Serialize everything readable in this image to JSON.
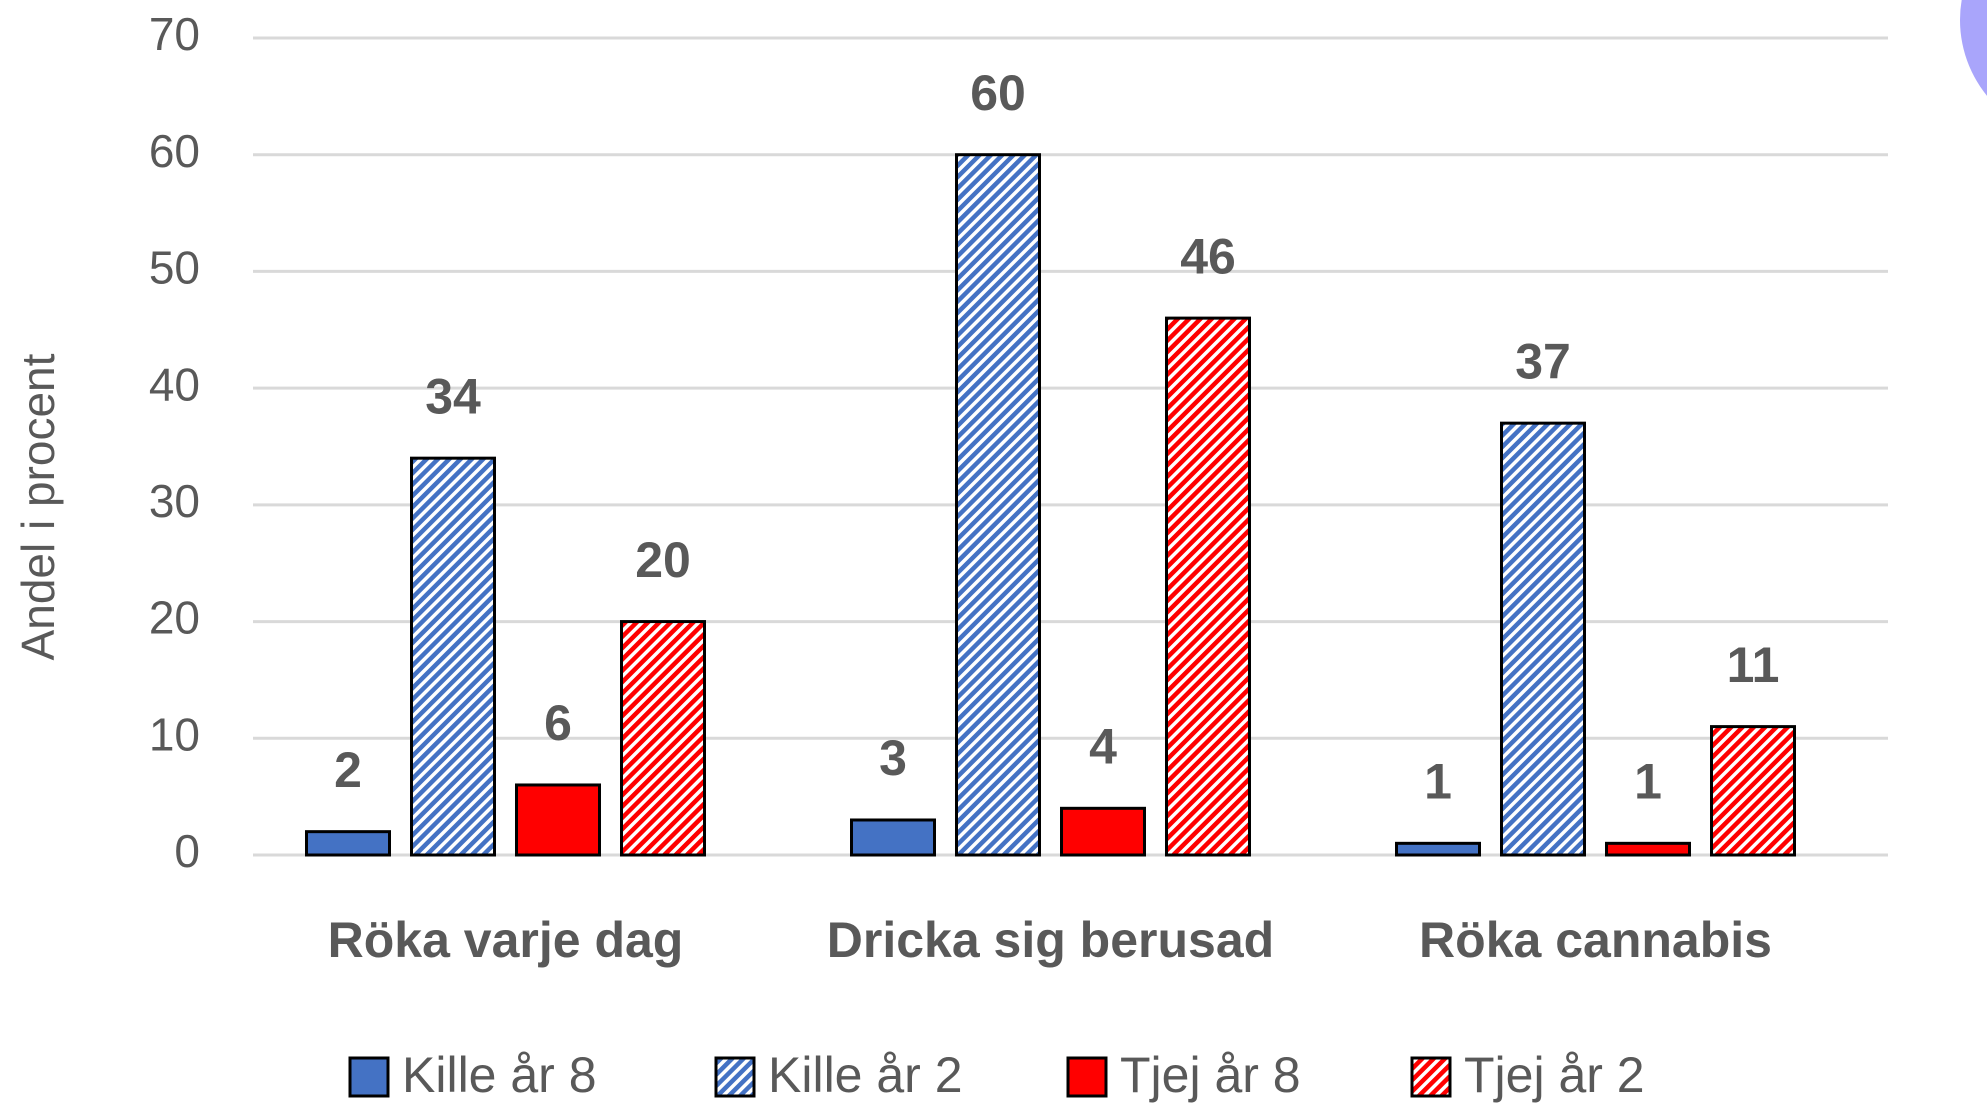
{
  "chart_data": {
    "type": "bar",
    "y_label": "Andel i procent",
    "categories": [
      "Röka varje dag",
      "Dricka sig berusad",
      "Röka cannabis"
    ],
    "series": [
      {
        "name": "Kille år 8",
        "color": "#4472c4",
        "hatch": false,
        "values": [
          2,
          3,
          1
        ]
      },
      {
        "name": "Kille år 2",
        "color": "#4472c4",
        "hatch": true,
        "values": [
          34,
          60,
          37
        ]
      },
      {
        "name": "Tjej år 8",
        "color": "#ff0000",
        "hatch": false,
        "values": [
          6,
          4,
          1
        ]
      },
      {
        "name": "Tjej år 2",
        "color": "#ff0000",
        "hatch": true,
        "values": [
          20,
          46,
          11
        ]
      }
    ],
    "ylim": [
      0,
      70
    ],
    "yticks": [
      0,
      10,
      20,
      30,
      40,
      50,
      60,
      70
    ],
    "grid": true,
    "legend": "bottom"
  }
}
